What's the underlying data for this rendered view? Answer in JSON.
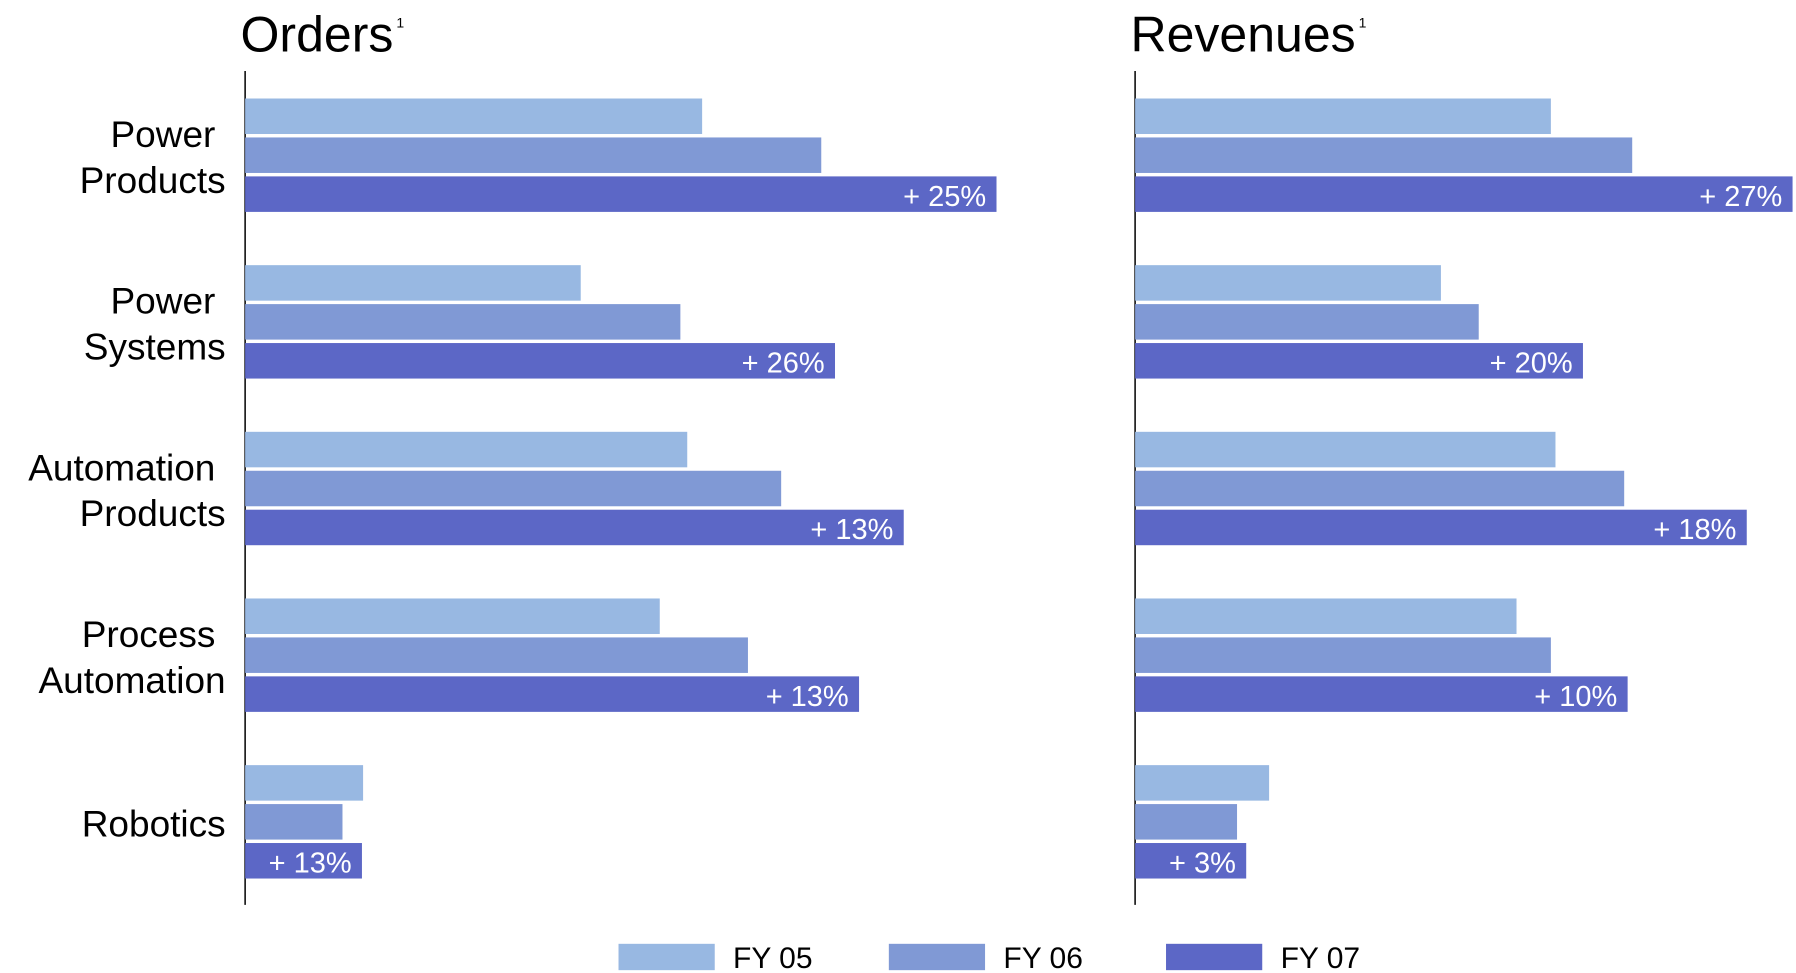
{
  "chart_data": {
    "type": "bar",
    "orientation": "horizontal",
    "categories": [
      "Power Products",
      "Power Systems",
      "Automation Products",
      "Process Automation",
      "Robotics"
    ],
    "series": [
      {
        "name": "FY 05",
        "color": "#98b8e2"
      },
      {
        "name": "FY 06",
        "color": "#8099d5"
      },
      {
        "name": "FY 07",
        "color": "#5c67c6"
      }
    ],
    "panels": [
      {
        "title": "Orders",
        "title_note": "1",
        "xlim": [
          0,
          700
        ],
        "series": [
          {
            "values": [
              399,
              293,
              386,
              362,
              103
            ]
          },
          {
            "values": [
              503,
              380,
              468,
              439,
              85
            ]
          },
          {
            "values": [
              656,
              515,
              575,
              536,
              102
            ]
          }
        ],
        "growth_labels": [
          "+ 25%",
          "+ 26%",
          "+ 13%",
          "+ 13%",
          "+ 13%"
        ]
      },
      {
        "title": "Revenues",
        "title_note": "1",
        "xlim": [
          0,
          575
        ],
        "series": [
          {
            "values": [
              363,
              267,
              367,
              333,
              117
            ]
          },
          {
            "values": [
              434,
              300,
              427,
              363,
              89
            ]
          },
          {
            "values": [
              574,
              391,
              534,
              430,
              97
            ]
          }
        ],
        "growth_labels": [
          "+ 27%",
          "+ 20%",
          "+ 18%",
          "+ 10%",
          "+ 3%"
        ]
      }
    ]
  }
}
